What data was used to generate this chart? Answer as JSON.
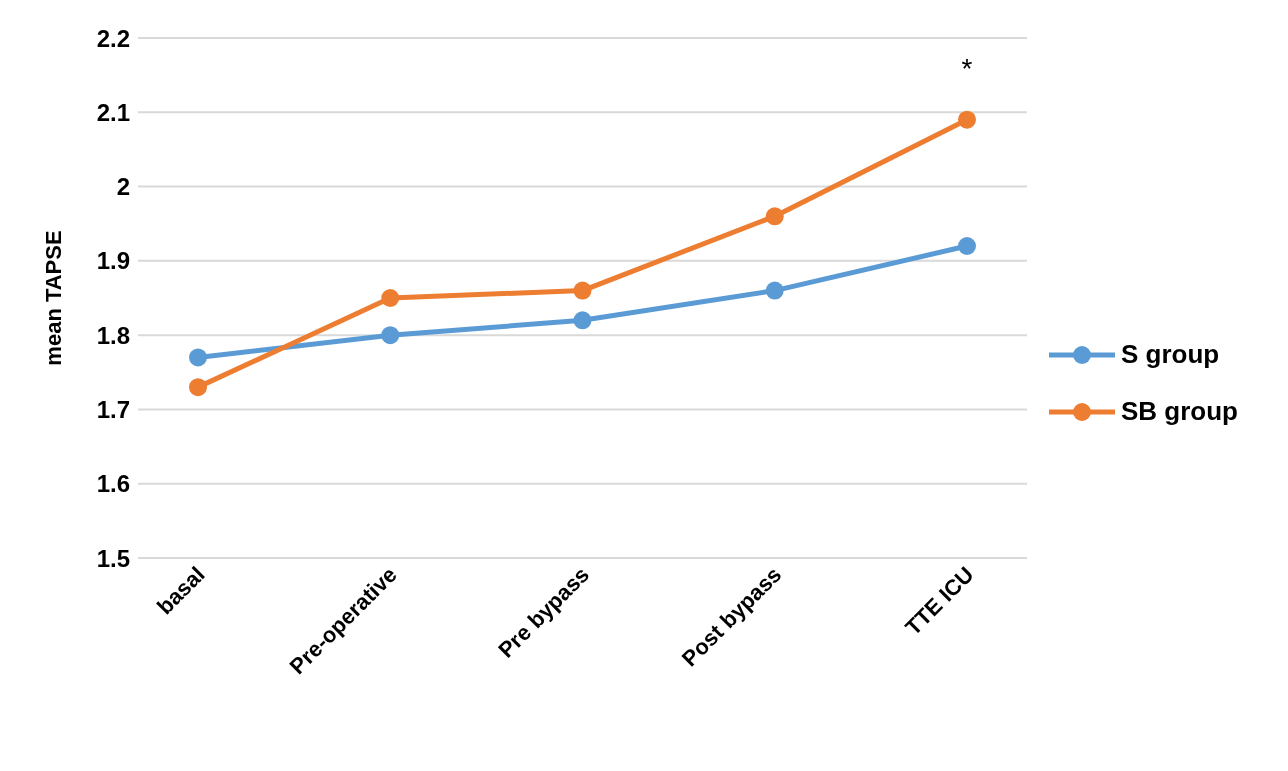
{
  "chart_data": {
    "type": "line",
    "ylabel": "mean TAPSE",
    "categories": [
      "basal",
      "Pre-operative",
      "Pre bypass",
      "Post bypass",
      "TTE ICU"
    ],
    "series": [
      {
        "name": "S group",
        "color": "#5b9bd5",
        "values": [
          1.77,
          1.8,
          1.82,
          1.86,
          1.92
        ]
      },
      {
        "name": "SB group",
        "color": "#ed7d31",
        "values": [
          1.73,
          1.85,
          1.86,
          1.96,
          2.09
        ]
      }
    ],
    "ylim": [
      1.5,
      2.2
    ],
    "yticks": [
      1.5,
      1.6,
      1.7,
      1.8,
      1.9,
      {
        "value": 2.0,
        "label": "2"
      },
      2.1,
      2.2
    ],
    "grid": "y",
    "legend": "right",
    "marker": "circle",
    "line_style": "solid",
    "annotations": [
      "*"
    ]
  }
}
